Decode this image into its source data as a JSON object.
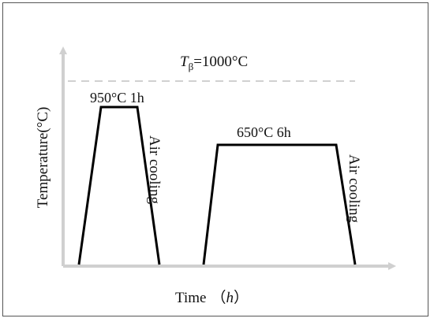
{
  "diagram": {
    "y_axis_label": "Temperature(°C)",
    "x_axis_label_main": "Time",
    "x_axis_label_unit": "h",
    "beta_transus": {
      "symbol": "T",
      "subscript": "β",
      "value_text": "=1000°C"
    },
    "stages": [
      {
        "hold_label": "950°C 1h",
        "cooling_label": "Air cooling"
      },
      {
        "hold_label": "650°C 6h",
        "cooling_label": "Air cooling"
      }
    ],
    "colors": {
      "axis": "#d0d0d0",
      "profile": "#000000",
      "transus_line": "#d0d0d0",
      "frame": "#555555"
    }
  }
}
